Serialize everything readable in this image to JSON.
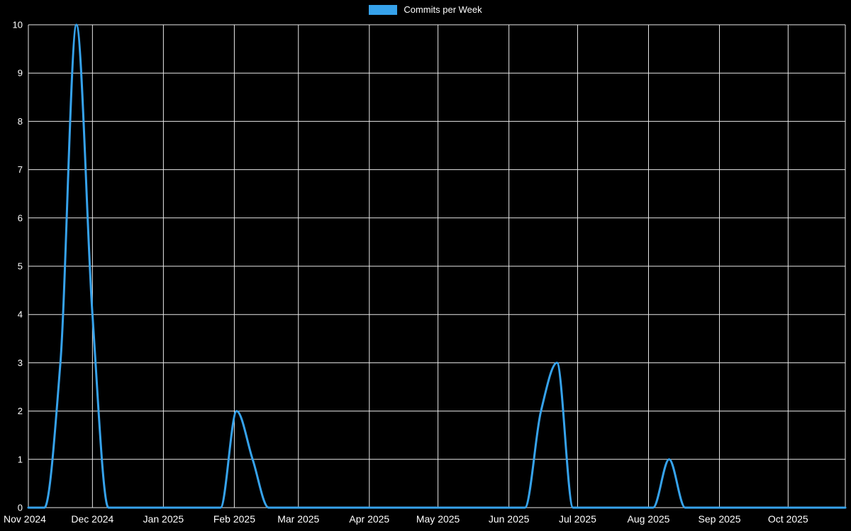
{
  "chart_data": {
    "type": "line",
    "series_name": "Commits per Week",
    "legend_position": "top",
    "grid": true,
    "background_color": "#000000",
    "grid_color": "#e8e8e8",
    "text_color": "#ffffff",
    "line_color": "#36a2eb",
    "ylim": [
      0,
      10
    ],
    "y_ticks": [
      0,
      1,
      2,
      3,
      4,
      5,
      6,
      7,
      8,
      9,
      10
    ],
    "x_tick_labels": [
      "Nov 2024",
      "Dec 2024",
      "Jan 2025",
      "Feb 2025",
      "Mar 2025",
      "Apr 2025",
      "May 2025",
      "Jun 2025",
      "Jul 2025",
      "Aug 2025",
      "Sep 2025",
      "Oct 2025"
    ],
    "x_tick_dates": [
      "2024-11-03",
      "2024-12-01",
      "2025-01-01",
      "2025-02-01",
      "2025-03-01",
      "2025-04-01",
      "2025-05-01",
      "2025-06-01",
      "2025-07-01",
      "2025-08-01",
      "2025-09-01",
      "2025-10-01"
    ],
    "x_dates": [
      "2024-11-03",
      "2024-11-10",
      "2024-11-17",
      "2024-11-24",
      "2024-12-01",
      "2024-12-08",
      "2024-12-15",
      "2024-12-22",
      "2024-12-29",
      "2025-01-05",
      "2025-01-12",
      "2025-01-19",
      "2025-01-26",
      "2025-02-02",
      "2025-02-09",
      "2025-02-16",
      "2025-02-23",
      "2025-03-02",
      "2025-03-09",
      "2025-03-16",
      "2025-03-23",
      "2025-03-30",
      "2025-04-06",
      "2025-04-13",
      "2025-04-20",
      "2025-04-27",
      "2025-05-04",
      "2025-05-11",
      "2025-05-18",
      "2025-05-25",
      "2025-06-01",
      "2025-06-08",
      "2025-06-15",
      "2025-06-22",
      "2025-06-29",
      "2025-07-06",
      "2025-07-13",
      "2025-07-20",
      "2025-07-27",
      "2025-08-03",
      "2025-08-10",
      "2025-08-17",
      "2025-08-24",
      "2025-08-31",
      "2025-09-07",
      "2025-09-14",
      "2025-09-21",
      "2025-09-28",
      "2025-10-05",
      "2025-10-12",
      "2025-10-19",
      "2025-10-26"
    ],
    "values": [
      0,
      0,
      3,
      10,
      4,
      0,
      0,
      0,
      0,
      0,
      0,
      0,
      0,
      2,
      1,
      0,
      0,
      0,
      0,
      0,
      0,
      0,
      0,
      0,
      0,
      0,
      0,
      0,
      0,
      0,
      0,
      0,
      2,
      3,
      0,
      0,
      0,
      0,
      0,
      0,
      1,
      0,
      0,
      0,
      0,
      0,
      0,
      0,
      0,
      0,
      0,
      0
    ]
  }
}
